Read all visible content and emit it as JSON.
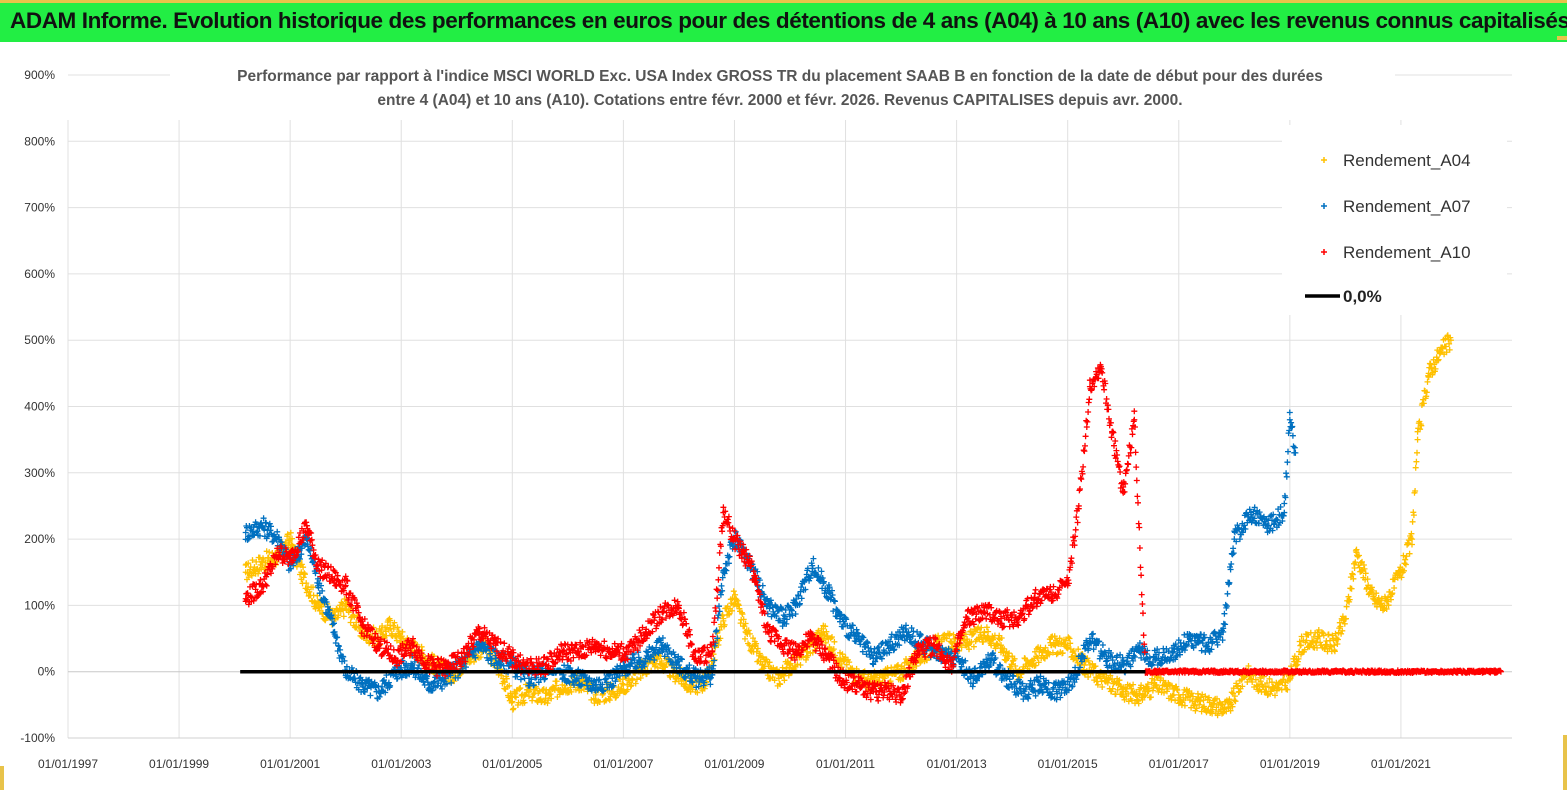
{
  "header": {
    "title": "ADAM Informe. Evolution historique des performances en euros pour des détentions de 4 ans (A04) à 10 ans (A10) avec les revenus connus capitalisés"
  },
  "chart_data": {
    "type": "scatter",
    "title_lines": [
      "Performance par rapport à l'indice MSCI WORLD Exc. USA Index GROSS TR  du placement SAAB B en fonction de la date de début pour des durées",
      "entre 4 (A04) et 10 ans (A10). Cotations entre févr. 2000 et févr. 2026. Revenus CAPITALISES depuis avr. 2000."
    ],
    "y_ticks": [
      "900%",
      "800%",
      "700%",
      "600%",
      "500%",
      "400%",
      "300%",
      "200%",
      "100%",
      "0%",
      "-100%"
    ],
    "ylim": [
      -100,
      900
    ],
    "x_ticks": [
      "01/01/1997",
      "01/01/1999",
      "01/01/2001",
      "01/01/2003",
      "01/01/2005",
      "01/01/2007",
      "01/01/2009",
      "01/01/2011",
      "01/01/2013",
      "01/01/2015",
      "01/01/2017",
      "01/01/2019",
      "01/01/2021"
    ],
    "xlim": [
      1997.0,
      2023.0
    ],
    "legend_position": "top-right",
    "series": [
      {
        "name": "Rendement_A04",
        "color": "#ffc000",
        "marker": "+",
        "points": [
          [
            2000.2,
            150
          ],
          [
            2000.5,
            165
          ],
          [
            2000.8,
            175
          ],
          [
            2001.0,
            200
          ],
          [
            2001.2,
            150
          ],
          [
            2001.5,
            100
          ],
          [
            2001.8,
            80
          ],
          [
            2002.0,
            100
          ],
          [
            2002.3,
            60
          ],
          [
            2002.6,
            50
          ],
          [
            2002.8,
            70
          ],
          [
            2003.0,
            50
          ],
          [
            2003.3,
            30
          ],
          [
            2003.6,
            10
          ],
          [
            2003.9,
            -5
          ],
          [
            2004.2,
            20
          ],
          [
            2004.5,
            40
          ],
          [
            2004.8,
            0
          ],
          [
            2005.0,
            -45
          ],
          [
            2005.3,
            -30
          ],
          [
            2005.6,
            -40
          ],
          [
            2005.9,
            -20
          ],
          [
            2006.2,
            -15
          ],
          [
            2006.5,
            -35
          ],
          [
            2006.8,
            -30
          ],
          [
            2007.0,
            -20
          ],
          [
            2007.3,
            0
          ],
          [
            2007.6,
            20
          ],
          [
            2007.9,
            0
          ],
          [
            2008.2,
            -20
          ],
          [
            2008.5,
            -15
          ],
          [
            2008.8,
            80
          ],
          [
            2009.0,
            110
          ],
          [
            2009.2,
            60
          ],
          [
            2009.5,
            10
          ],
          [
            2009.8,
            -10
          ],
          [
            2010.0,
            10
          ],
          [
            2010.3,
            30
          ],
          [
            2010.6,
            60
          ],
          [
            2010.9,
            20
          ],
          [
            2011.1,
            0
          ],
          [
            2011.4,
            -15
          ],
          [
            2011.7,
            -10
          ],
          [
            2012.0,
            0
          ],
          [
            2012.3,
            20
          ],
          [
            2012.6,
            40
          ],
          [
            2012.9,
            45
          ],
          [
            2013.2,
            45
          ],
          [
            2013.5,
            60
          ],
          [
            2013.8,
            40
          ],
          [
            2014.1,
            0
          ],
          [
            2014.4,
            20
          ],
          [
            2014.7,
            40
          ],
          [
            2015.0,
            40
          ],
          [
            2015.3,
            10
          ],
          [
            2015.6,
            -10
          ],
          [
            2016.0,
            -30
          ],
          [
            2016.3,
            -35
          ],
          [
            2016.6,
            -20
          ],
          [
            2017.0,
            -35
          ],
          [
            2017.3,
            -45
          ],
          [
            2017.6,
            -50
          ],
          [
            2017.9,
            -55
          ],
          [
            2018.2,
            0
          ],
          [
            2018.5,
            -20
          ],
          [
            2018.8,
            -25
          ],
          [
            2019.0,
            -10
          ],
          [
            2019.2,
            40
          ],
          [
            2019.5,
            50
          ],
          [
            2019.8,
            40
          ],
          [
            2020.0,
            80
          ],
          [
            2020.2,
            180
          ],
          [
            2020.5,
            110
          ],
          [
            2020.7,
            100
          ],
          [
            2021.0,
            150
          ],
          [
            2021.2,
            200
          ],
          [
            2021.3,
            350
          ],
          [
            2021.5,
            450
          ],
          [
            2021.7,
            480
          ],
          [
            2021.9,
            500
          ]
        ]
      },
      {
        "name": "Rendement_A07",
        "color": "#0070c0",
        "marker": "+",
        "points": [
          [
            2000.2,
            210
          ],
          [
            2000.5,
            220
          ],
          [
            2000.8,
            200
          ],
          [
            2001.0,
            160
          ],
          [
            2001.3,
            200
          ],
          [
            2001.5,
            140
          ],
          [
            2001.8,
            60
          ],
          [
            2002.0,
            0
          ],
          [
            2002.3,
            -20
          ],
          [
            2002.6,
            -30
          ],
          [
            2002.9,
            0
          ],
          [
            2003.2,
            10
          ],
          [
            2003.5,
            -20
          ],
          [
            2003.8,
            -10
          ],
          [
            2004.1,
            10
          ],
          [
            2004.4,
            40
          ],
          [
            2004.7,
            20
          ],
          [
            2005.0,
            10
          ],
          [
            2005.3,
            -10
          ],
          [
            2005.6,
            0
          ],
          [
            2005.9,
            0
          ],
          [
            2006.2,
            -10
          ],
          [
            2006.5,
            -20
          ],
          [
            2006.8,
            -10
          ],
          [
            2007.1,
            10
          ],
          [
            2007.4,
            20
          ],
          [
            2007.7,
            40
          ],
          [
            2008.0,
            10
          ],
          [
            2008.3,
            -10
          ],
          [
            2008.6,
            -5
          ],
          [
            2008.8,
            150
          ],
          [
            2009.0,
            200
          ],
          [
            2009.3,
            160
          ],
          [
            2009.6,
            100
          ],
          [
            2009.9,
            80
          ],
          [
            2010.1,
            100
          ],
          [
            2010.4,
            160
          ],
          [
            2010.7,
            120
          ],
          [
            2010.9,
            80
          ],
          [
            2011.2,
            50
          ],
          [
            2011.5,
            20
          ],
          [
            2011.8,
            40
          ],
          [
            2012.1,
            60
          ],
          [
            2012.4,
            40
          ],
          [
            2012.7,
            30
          ],
          [
            2013.0,
            20
          ],
          [
            2013.3,
            -10
          ],
          [
            2013.6,
            20
          ],
          [
            2013.9,
            -10
          ],
          [
            2014.2,
            -30
          ],
          [
            2014.5,
            -20
          ],
          [
            2014.8,
            -30
          ],
          [
            2015.1,
            -10
          ],
          [
            2015.4,
            50
          ],
          [
            2015.7,
            20
          ],
          [
            2016.0,
            10
          ],
          [
            2016.3,
            30
          ],
          [
            2016.6,
            20
          ],
          [
            2016.9,
            30
          ],
          [
            2017.2,
            50
          ],
          [
            2017.5,
            40
          ],
          [
            2017.8,
            60
          ],
          [
            2018.0,
            200
          ],
          [
            2018.3,
            240
          ],
          [
            2018.6,
            220
          ],
          [
            2018.9,
            240
          ],
          [
            2019.0,
            380
          ],
          [
            2019.1,
            330
          ]
        ]
      },
      {
        "name": "Rendement_A10",
        "color": "#ff0000",
        "marker": "+",
        "points": [
          [
            2000.2,
            110
          ],
          [
            2000.5,
            130
          ],
          [
            2000.8,
            180
          ],
          [
            2001.0,
            170
          ],
          [
            2001.3,
            220
          ],
          [
            2001.5,
            160
          ],
          [
            2001.8,
            140
          ],
          [
            2002.0,
            130
          ],
          [
            2002.3,
            70
          ],
          [
            2002.6,
            40
          ],
          [
            2002.9,
            20
          ],
          [
            2003.2,
            40
          ],
          [
            2003.5,
            10
          ],
          [
            2003.8,
            5
          ],
          [
            2004.1,
            20
          ],
          [
            2004.4,
            60
          ],
          [
            2004.7,
            40
          ],
          [
            2005.0,
            20
          ],
          [
            2005.3,
            5
          ],
          [
            2005.6,
            10
          ],
          [
            2005.9,
            30
          ],
          [
            2006.2,
            30
          ],
          [
            2006.5,
            40
          ],
          [
            2006.8,
            30
          ],
          [
            2007.1,
            30
          ],
          [
            2007.4,
            60
          ],
          [
            2007.7,
            90
          ],
          [
            2008.0,
            100
          ],
          [
            2008.3,
            20
          ],
          [
            2008.6,
            30
          ],
          [
            2008.8,
            240
          ],
          [
            2009.0,
            200
          ],
          [
            2009.3,
            160
          ],
          [
            2009.6,
            60
          ],
          [
            2009.9,
            40
          ],
          [
            2010.1,
            30
          ],
          [
            2010.4,
            50
          ],
          [
            2010.7,
            20
          ],
          [
            2010.9,
            -10
          ],
          [
            2011.2,
            -20
          ],
          [
            2011.5,
            -30
          ],
          [
            2011.8,
            -30
          ],
          [
            2012.0,
            -35
          ],
          [
            2012.3,
            30
          ],
          [
            2012.6,
            40
          ],
          [
            2012.9,
            10
          ],
          [
            2013.2,
            80
          ],
          [
            2013.5,
            90
          ],
          [
            2013.8,
            80
          ],
          [
            2014.1,
            80
          ],
          [
            2014.4,
            110
          ],
          [
            2014.7,
            120
          ],
          [
            2015.0,
            130
          ],
          [
            2015.2,
            250
          ],
          [
            2015.4,
            430
          ],
          [
            2015.6,
            460
          ],
          [
            2015.8,
            360
          ],
          [
            2016.0,
            270
          ],
          [
            2016.2,
            380
          ],
          [
            2016.4,
            0
          ],
          [
            2016.8,
            0
          ],
          [
            2017.2,
            0
          ],
          [
            2017.6,
            0
          ],
          [
            2018.0,
            0
          ],
          [
            2018.4,
            0
          ],
          [
            2018.8,
            0
          ],
          [
            2019.2,
            0
          ],
          [
            2019.6,
            0
          ],
          [
            2020.0,
            0
          ],
          [
            2020.4,
            0
          ],
          [
            2020.8,
            0
          ],
          [
            2021.2,
            0
          ],
          [
            2021.6,
            0
          ],
          [
            2022.0,
            0
          ],
          [
            2022.4,
            0
          ],
          [
            2022.8,
            0
          ]
        ]
      }
    ],
    "reference_line": {
      "name": "0,0%",
      "value": 0,
      "x_range": [
        2000.1,
        2016.4
      ],
      "color": "#000000"
    }
  }
}
